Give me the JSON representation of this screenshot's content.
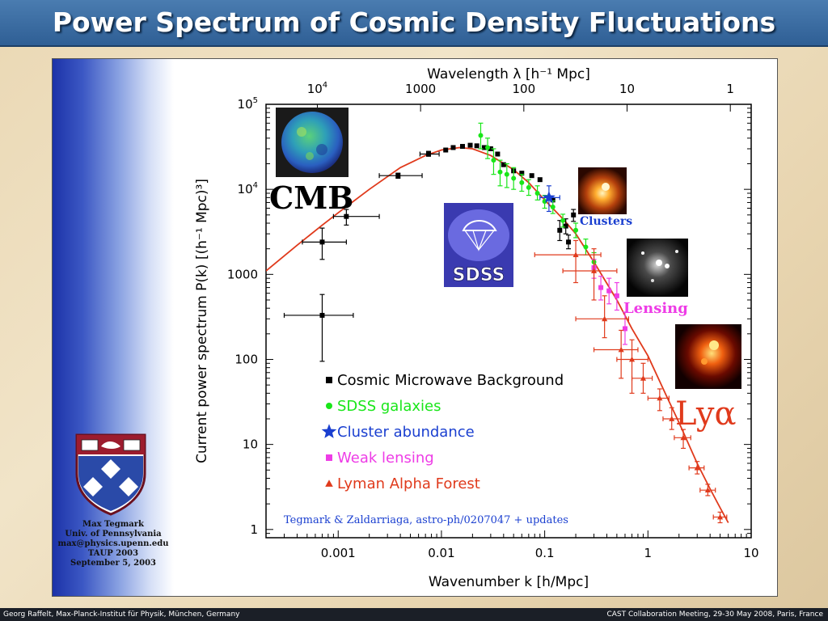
{
  "slide": {
    "title": "Power Spectrum of Cosmic Density Fluctuations",
    "footer_left": "Georg Raffelt, Max-Planck-Institut für Physik, München, Germany",
    "footer_right": "CAST Collaboration Meeting, 29-30 May 2008, Paris, France"
  },
  "author": {
    "name": "Max Tegmark",
    "affiliation": "Univ. of Pennsylvania",
    "email": "max@physics.upenn.edu",
    "event": "TAUP 2003",
    "date": "September 5, 2003"
  },
  "chart_data": {
    "type": "scatter",
    "xlabel": "Wavenumber k [h/Mpc]",
    "top_xlabel": "Wavelength λ [h⁻¹ Mpc]",
    "ylabel": "Current power spectrum P(k) [(h⁻¹ Mpc)³]",
    "xscale": "log",
    "yscale": "log",
    "xlim": [
      0.0002,
      10
    ],
    "ylim": [
      0.8,
      100000
    ],
    "x_ticks": [
      {
        "v": 0.001,
        "label": "0.001"
      },
      {
        "v": 0.01,
        "label": "0.01"
      },
      {
        "v": 0.1,
        "label": "0.1"
      },
      {
        "v": 1,
        "label": "1"
      },
      {
        "v": 10,
        "label": "10"
      }
    ],
    "y_ticks": [
      {
        "v": 1,
        "label": "1"
      },
      {
        "v": 10,
        "label": "10"
      },
      {
        "v": 100,
        "label": "100"
      },
      {
        "v": 1000,
        "label": "1000"
      },
      {
        "v": 10000,
        "label": "10",
        "sup": "4"
      },
      {
        "v": 100000,
        "label": "10",
        "sup": "5"
      }
    ],
    "top_ticks": [
      {
        "v": 0.000628,
        "label": "10",
        "sup": "4"
      },
      {
        "v": 0.00628,
        "label": "1000"
      },
      {
        "v": 0.0628,
        "label": "100"
      },
      {
        "v": 0.628,
        "label": "10"
      },
      {
        "v": 6.28,
        "label": "1"
      }
    ],
    "model_curve": {
      "color": "#e03a1c",
      "x": [
        0.0002,
        0.0004,
        0.0007,
        0.001,
        0.002,
        0.004,
        0.007,
        0.01,
        0.015,
        0.02,
        0.03,
        0.05,
        0.07,
        0.1,
        0.15,
        0.2,
        0.3,
        0.5,
        0.7,
        1,
        1.5,
        2,
        3,
        4,
        5,
        6
      ],
      "y": [
        1100,
        2200,
        3800,
        5300,
        10000,
        18000,
        25000,
        29000,
        31000,
        30000,
        25000,
        17000,
        12000,
        7500,
        4500,
        3000,
        1400,
        500,
        230,
        110,
        38,
        18,
        6,
        3,
        1.8,
        1.2
      ]
    },
    "series": [
      {
        "name": "Cosmic Microwave Background",
        "color": "#000000",
        "marker": "square",
        "points": [
          {
            "x": 0.0007,
            "y": 330,
            "xerr": [
              0.0003,
              0.0014
            ],
            "yerr": [
              95,
              580
            ]
          },
          {
            "x": 0.0007,
            "y": 2400,
            "xerr": [
              0.00045,
              0.0012
            ],
            "yerr": [
              1500,
              3500
            ]
          },
          {
            "x": 0.0012,
            "y": 4800,
            "xerr": [
              0.0009,
              0.0025
            ],
            "yerr": [
              3800,
              5800
            ]
          },
          {
            "x": 0.0038,
            "y": 14500,
            "xerr": [
              0.0025,
              0.0065
            ],
            "yerr": [
              13500,
              15500
            ]
          },
          {
            "x": 0.0075,
            "y": 26000,
            "xerr": [
              0.0062,
              0.0095
            ],
            "yerr": [
              24500,
              28000
            ]
          },
          {
            "x": 0.011,
            "y": 29000
          },
          {
            "x": 0.013,
            "y": 31000
          },
          {
            "x": 0.016,
            "y": 32000
          },
          {
            "x": 0.019,
            "y": 33000
          },
          {
            "x": 0.022,
            "y": 32500
          },
          {
            "x": 0.026,
            "y": 31000
          },
          {
            "x": 0.03,
            "y": 30000
          },
          {
            "x": 0.035,
            "y": 26000
          },
          {
            "x": 0.04,
            "y": 19500
          },
          {
            "x": 0.05,
            "y": 16500
          },
          {
            "x": 0.06,
            "y": 15500
          },
          {
            "x": 0.075,
            "y": 14500
          },
          {
            "x": 0.09,
            "y": 13000
          },
          {
            "x": 0.12,
            "y": 7500
          },
          {
            "x": 0.14,
            "y": 3300,
            "yerr": [
              2500,
              4300
            ]
          },
          {
            "x": 0.16,
            "y": 3700,
            "yerr": [
              3000,
              4500
            ]
          },
          {
            "x": 0.19,
            "y": 5000,
            "yerr": [
              4200,
              5800
            ]
          },
          {
            "x": 0.17,
            "y": 2400,
            "yerr": [
              2000,
              2900
            ]
          }
        ]
      },
      {
        "name": "SDSS galaxies",
        "color": "#19e619",
        "marker": "circle",
        "points": [
          {
            "x": 0.024,
            "y": 43000,
            "yerr": [
              30000,
              60000
            ]
          },
          {
            "x": 0.028,
            "y": 31000,
            "yerr": [
              23000,
              40000
            ]
          },
          {
            "x": 0.032,
            "y": 22000,
            "yerr": [
              15000,
              30000
            ]
          },
          {
            "x": 0.037,
            "y": 16000,
            "yerr": [
              11000,
              22000
            ]
          },
          {
            "x": 0.043,
            "y": 15000,
            "yerr": [
              10500,
              20000
            ]
          },
          {
            "x": 0.05,
            "y": 13500,
            "yerr": [
              10000,
              18000
            ]
          },
          {
            "x": 0.06,
            "y": 12000,
            "yerr": [
              9500,
              15000
            ]
          },
          {
            "x": 0.07,
            "y": 10500,
            "yerr": [
              8500,
              13000
            ]
          },
          {
            "x": 0.085,
            "y": 9000,
            "yerr": [
              7500,
              11000
            ]
          },
          {
            "x": 0.1,
            "y": 7200,
            "yerr": [
              6000,
              8500
            ]
          },
          {
            "x": 0.12,
            "y": 6200,
            "yerr": [
              5200,
              7300
            ]
          },
          {
            "x": 0.15,
            "y": 4300,
            "yerr": [
              3600,
              5100
            ]
          },
          {
            "x": 0.2,
            "y": 3300,
            "yerr": [
              2700,
              4000
            ]
          },
          {
            "x": 0.25,
            "y": 2100,
            "yerr": [
              1700,
              2600
            ]
          },
          {
            "x": 0.3,
            "y": 1400,
            "yerr": [
              1100,
              1800
            ]
          }
        ]
      },
      {
        "name": "Cluster abundance",
        "color": "#1a3fd0",
        "marker": "star",
        "points": [
          {
            "x": 0.11,
            "y": 8000,
            "xerr": [
              0.09,
              0.14
            ],
            "yerr": [
              5500,
              11000
            ]
          }
        ]
      },
      {
        "name": "Weak lensing",
        "color": "#ee3ce6",
        "marker": "square",
        "points": [
          {
            "x": 0.3,
            "y": 1200,
            "yerr": [
              900,
              1500
            ]
          },
          {
            "x": 0.35,
            "y": 700,
            "yerr": [
              500,
              950
            ]
          },
          {
            "x": 0.42,
            "y": 640,
            "yerr": [
              450,
              900
            ]
          },
          {
            "x": 0.5,
            "y": 560,
            "yerr": [
              380,
              800
            ]
          },
          {
            "x": 0.6,
            "y": 230,
            "yerr": [
              150,
              360
            ]
          }
        ]
      },
      {
        "name": "Lyman Alpha Forest",
        "color": "#e03a1c",
        "marker": "triangle",
        "points": [
          {
            "x": 0.2,
            "y": 1700,
            "xerr": [
              0.08,
              0.35
            ],
            "yerr": [
              800,
              2500
            ]
          },
          {
            "x": 0.3,
            "y": 1100,
            "xerr": [
              0.15,
              0.5
            ],
            "yerr": [
              500,
              2000
            ]
          },
          {
            "x": 0.38,
            "y": 300,
            "xerr": [
              0.2,
              0.65
            ],
            "yerr": [
              180,
              560
            ]
          },
          {
            "x": 0.55,
            "y": 130,
            "xerr": [
              0.3,
              0.8
            ],
            "yerr": [
              60,
              220
            ]
          },
          {
            "x": 0.7,
            "y": 100,
            "xerr": [
              0.5,
              1.0
            ],
            "yerr": [
              40,
              170
            ]
          },
          {
            "x": 0.9,
            "y": 60,
            "xerr": [
              0.7,
              1.1
            ],
            "yerr": [
              40,
              90
            ]
          },
          {
            "x": 1.3,
            "y": 35,
            "xerr": [
              1.0,
              1.6
            ],
            "yerr": [
              25,
              45
            ]
          },
          {
            "x": 1.7,
            "y": 20,
            "xerr": [
              1.4,
              2.1
            ],
            "yerr": [
              15,
              27
            ]
          },
          {
            "x": 2.2,
            "y": 12,
            "xerr": [
              1.8,
              2.6
            ],
            "yerr": [
              9,
              15
            ]
          },
          {
            "x": 3.0,
            "y": 5.3,
            "xerr": [
              2.5,
              3.5
            ],
            "yerr": [
              4.5,
              6.3
            ]
          },
          {
            "x": 3.8,
            "y": 2.9,
            "xerr": [
              3.2,
              4.5
            ],
            "yerr": [
              2.5,
              3.4
            ]
          },
          {
            "x": 5.0,
            "y": 1.4,
            "xerr": [
              4.3,
              5.8
            ],
            "yerr": [
              1.2,
              1.6
            ]
          }
        ]
      }
    ],
    "annotations": {
      "cmb": "CMB",
      "sdss": "SDSS",
      "clusters": "Clusters",
      "lensing": "Lensing",
      "lya": "Lyα",
      "citation": "Tegmark & Zaldarriaga, astro-ph/0207047 + updates"
    },
    "annotation_colors": {
      "cmb": "#000000",
      "clusters": "#1a3fd0",
      "lensing": "#ee3ce6",
      "lya": "#e03a1c",
      "citation": "#1a3fd0"
    }
  }
}
